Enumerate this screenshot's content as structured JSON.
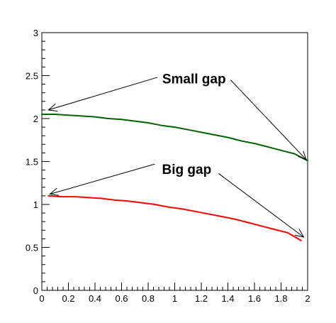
{
  "chart_data": {
    "type": "line",
    "title": "",
    "xlabel": "",
    "ylabel": "",
    "xlim": [
      0,
      2
    ],
    "ylim": [
      0,
      3
    ],
    "grid": false,
    "legend": "none",
    "x_ticks": [
      "0",
      "0.2",
      "0.4",
      "0.6",
      "0.8",
      "1",
      "1.2",
      "1.4",
      "1.6",
      "1.8",
      "2"
    ],
    "y_ticks": [
      "0",
      "0.5",
      "1",
      "1.5",
      "2",
      "2.5",
      "3"
    ],
    "series": [
      {
        "color": "#006400",
        "x": [
          0.0,
          0.1,
          0.2,
          0.3,
          0.4,
          0.5,
          0.6,
          0.7,
          0.8,
          0.9,
          1.0,
          1.1,
          1.2,
          1.3,
          1.4,
          1.5,
          1.6,
          1.7,
          1.8,
          1.9,
          2.0
        ],
        "y": [
          2.05,
          2.05,
          2.04,
          2.03,
          2.02,
          2.0,
          1.99,
          1.97,
          1.95,
          1.92,
          1.9,
          1.87,
          1.84,
          1.81,
          1.78,
          1.74,
          1.71,
          1.67,
          1.63,
          1.59,
          1.51
        ]
      },
      {
        "color": "#ff0000",
        "x": [
          0.05,
          0.15,
          0.25,
          0.35,
          0.45,
          0.55,
          0.65,
          0.75,
          0.85,
          0.95,
          1.05,
          1.15,
          1.25,
          1.35,
          1.45,
          1.55,
          1.65,
          1.75,
          1.85,
          1.95
        ],
        "y": [
          1.1,
          1.09,
          1.09,
          1.08,
          1.07,
          1.05,
          1.04,
          1.02,
          1.0,
          0.97,
          0.95,
          0.92,
          0.89,
          0.86,
          0.83,
          0.79,
          0.75,
          0.71,
          0.67,
          0.58
        ]
      }
    ],
    "annotations": [
      {
        "text": "Small gap",
        "color": "#000000",
        "arrows": [
          {
            "from": [
              0.87,
              2.48
            ],
            "to": [
              0.05,
              2.1
            ]
          },
          {
            "from": [
              1.42,
              2.45
            ],
            "to": [
              1.99,
              1.52
            ]
          }
        ]
      },
      {
        "text": "Big gap",
        "color": "#000000",
        "arrows": [
          {
            "from": [
              0.85,
              1.47
            ],
            "to": [
              0.06,
              1.12
            ]
          },
          {
            "from": [
              1.33,
              1.36
            ],
            "to": [
              1.97,
              0.62
            ]
          }
        ]
      }
    ]
  }
}
